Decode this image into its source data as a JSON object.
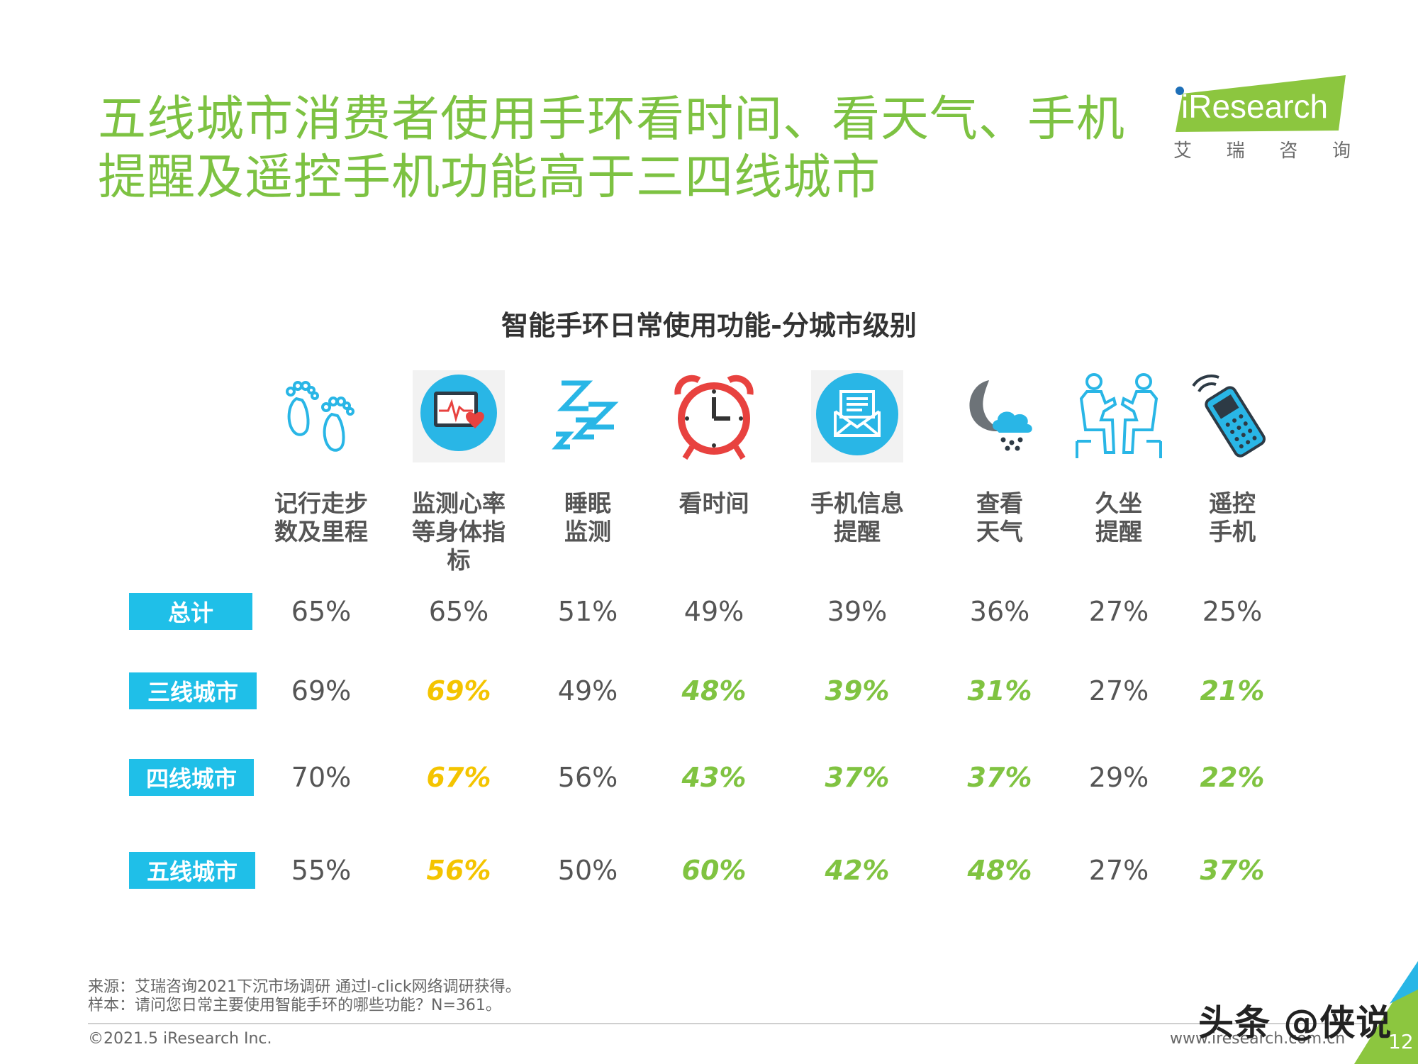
{
  "title": "五线城市消费者使用手环看时间、看天气、手机提醒及遥控手机功能高于三四线城市",
  "logo": {
    "brand": "iResearch",
    "sub": [
      "艾",
      "瑞",
      "咨",
      "询"
    ],
    "color": "#8cc63f"
  },
  "chart_title": "智能手环日常使用功能-分城市级别",
  "columns": [
    {
      "label": "记行走步\n数及里程",
      "icon": "footprints-icon"
    },
    {
      "label": "监测心率\n等身体指\n标",
      "icon": "heart-rate-monitor-icon"
    },
    {
      "label": "睡眠\n监测",
      "icon": "sleep-zzz-icon"
    },
    {
      "label": "看时间",
      "icon": "alarm-clock-icon"
    },
    {
      "label": "手机信息\n提醒",
      "icon": "message-envelope-icon"
    },
    {
      "label": "查看\n天气",
      "icon": "weather-moon-cloud-icon"
    },
    {
      "label": "久坐\n提醒",
      "icon": "sitting-people-icon"
    },
    {
      "label": "遥控\n手机",
      "icon": "remote-phone-icon"
    }
  ],
  "rows": [
    {
      "label": "总计",
      "values": [
        "65%",
        "65%",
        "51%",
        "49%",
        "39%",
        "36%",
        "27%",
        "25%"
      ],
      "styles": [
        "n",
        "n",
        "n",
        "n",
        "n",
        "n",
        "n",
        "n"
      ]
    },
    {
      "label": "三线城市",
      "values": [
        "69%",
        "69%",
        "49%",
        "48%",
        "39%",
        "31%",
        "27%",
        "21%"
      ],
      "styles": [
        "n",
        "y",
        "n",
        "g",
        "g",
        "g",
        "n",
        "g"
      ]
    },
    {
      "label": "四线城市",
      "values": [
        "70%",
        "67%",
        "56%",
        "43%",
        "37%",
        "37%",
        "29%",
        "22%"
      ],
      "styles": [
        "n",
        "y",
        "n",
        "g",
        "g",
        "g",
        "n",
        "g"
      ]
    },
    {
      "label": "五线城市",
      "values": [
        "55%",
        "56%",
        "50%",
        "60%",
        "42%",
        "48%",
        "27%",
        "37%"
      ],
      "styles": [
        "n",
        "y",
        "n",
        "g",
        "g",
        "g",
        "n",
        "g"
      ]
    }
  ],
  "colors": {
    "title": "#7dc242",
    "tag": "#1fbfe8",
    "yellow": "#f4c400",
    "green": "#80c341",
    "icon_blue": "#29b6e6",
    "icon_red": "#e8423f"
  },
  "footer": {
    "source": "来源：艾瑞咨询2021下沉市场调研 通过I-click网络调研获得。",
    "sample": "样本：请问您日常主要使用智能手环的哪些功能？N=361。",
    "copyright": "©2021.5 iResearch Inc.",
    "website": "www.iresearch.com.cn",
    "page": "12",
    "watermark": "头条 @侠说"
  }
}
